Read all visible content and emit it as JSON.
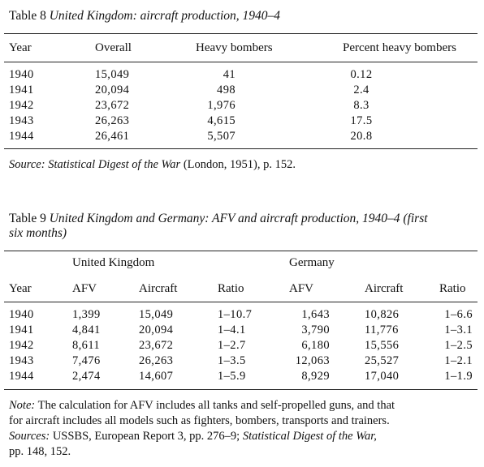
{
  "table8": {
    "number": "Table 8",
    "title": "United Kingdom: aircraft production, 1940–4",
    "headers": [
      "Year",
      "Overall",
      "Heavy bombers",
      "Percent heavy bombers"
    ],
    "rows": [
      [
        "1940",
        "15,049",
        "41",
        "0.12"
      ],
      [
        "1941",
        "20,094",
        "498",
        "2.4"
      ],
      [
        "1942",
        "23,672",
        "1,976",
        "8.3"
      ],
      [
        "1943",
        "26,263",
        "4,615",
        "17.5"
      ],
      [
        "1944",
        "26,461",
        "5,507",
        "20.8"
      ]
    ],
    "source_label": "Source:",
    "source_italic": "Statistical Digest of the War",
    "source_rest": "(London, 1951), p. 152."
  },
  "table9": {
    "number": "Table 9",
    "title_line1": "United Kingdom and Germany: AFV and aircraft production, 1940–4 (first",
    "title_line2": "six months)",
    "group_uk": "United Kingdom",
    "group_de": "Germany",
    "headers": [
      "Year",
      "AFV",
      "Aircraft",
      "Ratio",
      "AFV",
      "Aircraft",
      "Ratio"
    ],
    "rows": [
      [
        "1940",
        "1,399",
        "15,049",
        "1–10.7",
        "1,643",
        "10,826",
        "1–6.6"
      ],
      [
        "1941",
        "4,841",
        "20,094",
        "1–4.1",
        "3,790",
        "11,776",
        "1–3.1"
      ],
      [
        "1942",
        "8,611",
        "23,672",
        "1–2.7",
        "6,180",
        "15,556",
        "1–2.5"
      ],
      [
        "1943",
        "7,476",
        "26,263",
        "1–3.5",
        "12,063",
        "25,527",
        "1–2.1"
      ],
      [
        "1944",
        "2,474",
        "14,607",
        "1–5.9",
        "8,929",
        "17,040",
        "1–1.9"
      ]
    ],
    "note_label": "Note:",
    "note_line1": "The calculation for AFV includes all tanks and self-propelled guns, and that",
    "note_line2": "for aircraft includes all models such as fighters, bombers, transports and trainers.",
    "sources_label": "Sources:",
    "sources_mid": "USSBS, European Report 3, pp. 276–9;",
    "sources_italic": "Statistical Digest of the War,",
    "sources_line2": "pp. 148, 152."
  }
}
